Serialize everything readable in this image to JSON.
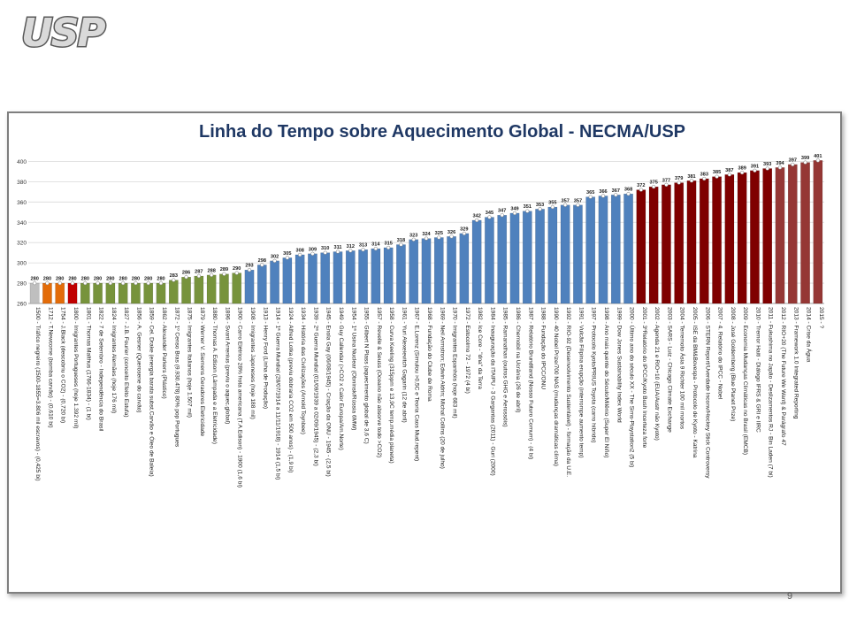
{
  "logo": {
    "text": "USP"
  },
  "slide_number": "9",
  "colors": {
    "grey": "#bfbfbf",
    "orange": "#e36c09",
    "red": "#c00000",
    "olive": "#77933c",
    "blue": "#4f81bd",
    "dark_red": "#7f0000",
    "red_brown": "#953735",
    "title": "#1f3864"
  },
  "chart_data": {
    "type": "bar",
    "title": "Linha do Tempo sobre Aquecimento Global - NECMA/USP",
    "xlabel": "",
    "ylabel": "",
    "ylim": [
      260,
      410
    ],
    "yticks": [
      260,
      280,
      300,
      320,
      340,
      360,
      380,
      400
    ],
    "grid": true,
    "legend": "none",
    "categories": [
      "1500 - Tráfico negreiro (1500-1855=3.806 mil escravos) - (0,425 bi)",
      "1712 - T.Newcome (bomba carvão) - (0,610 bi)",
      "1754 - J.Black (descobriu o CO2) - (0,720 bi)",
      "1800 - Imigrantes Portugueses (hoje 1.392 mil)",
      "1801 - Thomas Malthus (1766-1834) - (1 bi)",
      "1822 - 7 de Setembro - Independência do Brasil",
      "1824 - Imigrantes Alemães (hoje 176 mil)",
      "1827 - J.B. Fourier (conceito Efeito Estufa)",
      "1856 - A. Gesner (Querosene do carvão)",
      "1859 - Cel. Drake (energia barata subst.Carvão e Óleo de Baleia)",
      "1862 - Alexander Parkers (Plástico)",
      "1872 - 1º Censo Bras (9.930.478) 80% pop Portugues",
      "1875 - Imigrantes Italianos (hoje 1.507 mil)",
      "1879 - Werner V. Siemens Geradores Eletricidade",
      "1880 - Thomas A. Edison (Lâmpada e a Eletricidade)",
      "1896 - Svant Arrenius (previu o aquec.global)",
      "1900 - Carro Elétrico 28% frota americana (T.A.Edison) - 1900 (1,6 bi)",
      "1908 - Imigrantes Japoneses (hoje 188 mil)",
      "1913 - Henry Ford (Linha de Produção)",
      "1914 - 1ª Guerra Mundial (28/07/1914 a 11/11/1918) - 1914 (1,5 bi)",
      "1924 - Alfred Lotka (previu dobraria CO2 em 500 anos) - (1,9 bi)",
      "1934 - História das Civilizações (Arnold Toynbee)",
      "1939 - 2ª Guerra Mundial (01/09/1939 a 02/09/1945) - (2,3 bi)",
      "1945 - Enola Gay (06/08/1945) - Criação da ONU - 1945 - (2,5 bi)",
      "1949 - Guy Callendar (>CO2 x Calor Europa/Am.Norte)",
      "1954 - 1ª Usina Nuclear (Obninsk/Rússia 6MW)",
      "1955 - Gilbert N Plass (aquecimento global de 3,6 C)",
      "1957 - Revelle & Seuss (Oceano não absorve todo >CO2)",
      "1958 - Curva Keeling (315ppm e 13,9C temp.média planeta)",
      "1961 - Yuri Alexeievitch Gagarin (12 de abril)",
      "1967 - E.Lorenz (Simulou >0,5C e Teoria Caos Mud.repent)",
      "1968 - Fundação do Clube de Roma",
      "1969 - Neil Armstron; Edwin Aldrin; Michal Collins (20 de julho)",
      "1970 - Imigrantes Espanhóis (hoje 683 mil)",
      "1972 - Estocolmo 72 - 1972 (4 bi)",
      "1982 - Ice Core - \"dna\" da Terra",
      "1984 - Inauguração da ITAIPU - 3 Gargantas (2011) - Guri (2000)",
      "1985 - Ramanathan (outros GHG e Aerossóis)",
      "1986 - Chernobil na Ucrânia (26 de abril)",
      "1987 - Relatório Brundtland (Nosso Futuro Comum) - (4 bi)",
      "1988 - Fundação do IPCC/ONU",
      "1990 - 40 Nobel Prize/700 NAS (mudanças dramáticas clima)",
      "1992 - RIO-92 (Desenvolvimento Sustentável) - formação da U.E.",
      "1991 - Vulcão Filipina erupção (interrompe aumento temp)",
      "1997 - Protocolo Kyoto/PRIUS Toyota (carro híbrido)",
      "1998 - Ano mais quente do Século/Milênio (Super El Niño)",
      "1999 - Dow Jones Sustainability Index World",
      "2000 - Último ano do século XX - The Sims-Playstation2 (5 bi)",
      "2001 - 3ºRelatório do IPCC/Kyoto Bush Incerteza forte",
      "2002 - Agenda 21 e RIO+10 (EUA/Austr não Kyoto)",
      "2003 - SARS - Luiz - Chicago Climate Exchange",
      "2004 - Terremoto Ásia 9 Richter 100 mil mortos",
      "2005 - ISE da BM&Bovespa - Protocolo de Kyoto - Katrina",
      "2006 - STERN Report/Uverdade Inconv/Hockey Stick Controversy",
      "2007 - 4. Relatório do IPCC - Nobel",
      "2008 - José Goldemberg (Blue Planet Prize)",
      "2009 - Economia Mudanças Climáticas no Brasil (EMCB)",
      "2010 - Tremor Haiti - Diálogo IFRS & GRI e IIRC",
      "2011 - Fukushima no Japão - Deslizamentos RJ - Bin Laden (7 bi)",
      "2012 - RIO+20 (The Future We Want) & Parágrafo 47",
      "2013 - Framework 1.0 Integrated Reporting",
      "2014 - Crise da Água",
      "2015 - ?"
    ],
    "values": [
      280,
      280,
      280,
      280,
      280,
      280,
      280,
      280,
      280,
      280,
      280,
      283,
      286,
      287,
      288,
      289,
      290,
      293,
      298,
      302,
      305,
      308,
      309,
      310,
      311,
      312,
      313,
      314,
      315,
      318,
      323,
      324,
      325,
      326,
      329,
      342,
      345,
      347,
      349,
      351,
      353,
      355,
      357,
      357,
      365,
      366,
      367,
      368,
      372,
      375,
      377,
      379,
      381,
      383,
      385,
      387,
      389,
      391,
      393,
      394,
      397,
      399,
      401
    ],
    "value_labels": [
      "280",
      "280",
      "280",
      "280",
      "280",
      "280",
      "280",
      "280",
      "280",
      "280",
      "280",
      "283",
      "286",
      "287",
      "288",
      "289",
      "290",
      "293",
      "298",
      "302",
      "305",
      "308",
      "309",
      "310",
      "311",
      "312",
      "313",
      "314",
      "315",
      "318",
      "323",
      "324",
      "325",
      "326",
      "329",
      "342",
      "345",
      "347",
      "349",
      "351",
      "353",
      "355",
      "357",
      "357",
      "365",
      "366",
      "367",
      "368",
      "372",
      "375",
      "377",
      "379",
      "381",
      "383",
      "385",
      "387",
      "389",
      "391",
      "393",
      "394",
      "397",
      "399",
      "401"
    ],
    "bar_colors": [
      "grey",
      "orange",
      "orange",
      "red",
      "olive",
      "olive",
      "olive",
      "olive",
      "olive",
      "olive",
      "olive",
      "olive",
      "olive",
      "olive",
      "olive",
      "olive",
      "olive",
      "blue",
      "blue",
      "blue",
      "blue",
      "blue",
      "blue",
      "blue",
      "blue",
      "blue",
      "blue",
      "blue",
      "blue",
      "blue",
      "blue",
      "blue",
      "blue",
      "blue",
      "blue",
      "blue",
      "blue",
      "blue",
      "blue",
      "blue",
      "blue",
      "blue",
      "blue",
      "blue",
      "blue",
      "blue",
      "blue",
      "blue",
      "dark_red",
      "dark_red",
      "dark_red",
      "dark_red",
      "dark_red",
      "dark_red",
      "dark_red",
      "dark_red",
      "dark_red",
      "dark_red",
      "dark_red",
      "red_brown",
      "red_brown",
      "red_brown",
      "red_brown"
    ]
  }
}
